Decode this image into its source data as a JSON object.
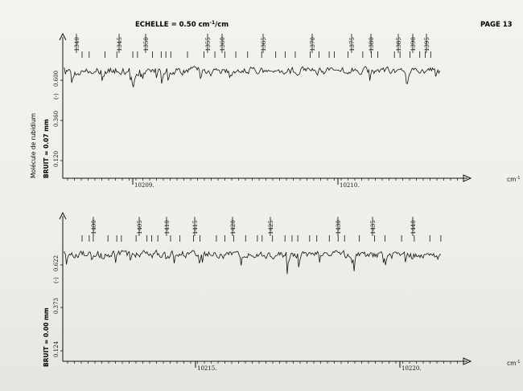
{
  "header": {
    "echelle": "ECHELLE = 0.50 cm",
    "echelle_sup": "-1",
    "echelle_unit": "/cm",
    "page": "PAGE 13"
  },
  "side": {
    "molecule": "Molécule de rubidium",
    "bruit_top": "BRUIT = 0.07 mm",
    "bruit_bottom": "BRUIT = 0.00 mm"
  },
  "colors": {
    "ink": "#111111",
    "paper": "#eeeeea"
  },
  "chart_data": [
    {
      "type": "line",
      "x_unit": "cm-1",
      "x_ticks": [
        "10209.",
        "10210."
      ],
      "y_ticks": [
        "0.600",
        "0.360",
        "0.120"
      ],
      "y_marker": "(-)",
      "peak_labels": [
        "1340",
        "1345",
        "1350",
        "1355",
        "1360",
        "1365",
        "1370",
        "1375",
        "1380",
        "1385",
        "1390",
        "1395"
      ]
    },
    {
      "type": "line",
      "x_unit": "cm-1",
      "x_ticks": [
        "10215.",
        "10220."
      ],
      "y_ticks": [
        "0.622",
        "0.373",
        "0.124"
      ],
      "y_marker": "(-)",
      "peak_labels": [
        "1400",
        "1405",
        "1410",
        "1415",
        "1420",
        "1425",
        "1430",
        "1435",
        "1440"
      ]
    }
  ]
}
